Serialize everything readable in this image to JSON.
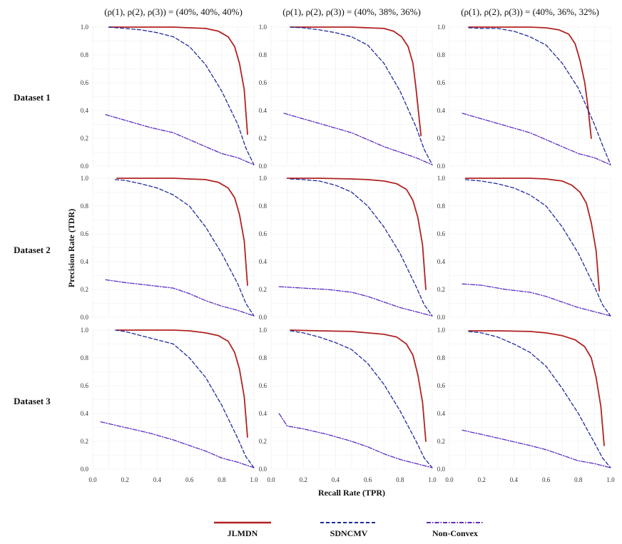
{
  "column_titles": [
    "(ρ(1), ρ(2), ρ(3)) = (40%, 40%, 40%)",
    "(ρ(1), ρ(2), ρ(3)) = (40%, 38%, 36%)",
    "(ρ(1), ρ(2), ρ(3)) = (40%, 36%, 32%)"
  ],
  "row_labels": [
    "Dataset 1",
    "Dataset 2",
    "Dataset 3"
  ],
  "colors": {
    "JLMDN": "#b22222",
    "SDNCMV": "#1f2a9c",
    "Non-Convex": "#5b2bc4"
  },
  "chart_data": {
    "type": "line",
    "xlabel": "Recall Rate (TPR)",
    "ylabel": "Precision Rate (TDR)",
    "xlim": [
      0.0,
      1.0
    ],
    "ylim": [
      0.0,
      1.0
    ],
    "xticks": [
      "0.0",
      "0.2",
      "0.4",
      "0.6",
      "0.8",
      "1.0"
    ],
    "yticks": [
      "0.0",
      "0.2",
      "0.4",
      "0.6",
      "0.8",
      "1.0"
    ],
    "legend": [
      "JLMDN",
      "SDNCMV",
      "Non-Convex"
    ],
    "legend_position": "bottom",
    "grid": true,
    "panels": [
      {
        "row": 0,
        "col": 0,
        "series": [
          {
            "name": "JLMDN",
            "x": [
              0.1,
              0.3,
              0.5,
              0.6,
              0.7,
              0.78,
              0.84,
              0.88,
              0.91,
              0.94,
              0.96
            ],
            "y": [
              1.0,
              1.0,
              1.0,
              0.995,
              0.99,
              0.97,
              0.93,
              0.86,
              0.74,
              0.55,
              0.23
            ]
          },
          {
            "name": "SDNCMV",
            "x": [
              0.1,
              0.2,
              0.3,
              0.4,
              0.5,
              0.6,
              0.7,
              0.8,
              0.9,
              0.95,
              1.0
            ],
            "y": [
              1.0,
              0.99,
              0.98,
              0.96,
              0.93,
              0.86,
              0.73,
              0.54,
              0.3,
              0.13,
              0.01
            ]
          },
          {
            "name": "Non-Convex",
            "x": [
              0.08,
              0.2,
              0.35,
              0.5,
              0.6,
              0.7,
              0.8,
              0.9,
              1.0
            ],
            "y": [
              0.37,
              0.33,
              0.28,
              0.24,
              0.19,
              0.14,
              0.09,
              0.06,
              0.01
            ]
          }
        ]
      },
      {
        "row": 0,
        "col": 1,
        "series": [
          {
            "name": "JLMDN",
            "x": [
              0.12,
              0.3,
              0.5,
              0.6,
              0.7,
              0.76,
              0.81,
              0.85,
              0.88,
              0.9,
              0.93
            ],
            "y": [
              1.0,
              1.0,
              1.0,
              0.995,
              0.99,
              0.97,
              0.93,
              0.86,
              0.74,
              0.55,
              0.22
            ]
          },
          {
            "name": "SDNCMV",
            "x": [
              0.12,
              0.2,
              0.3,
              0.4,
              0.5,
              0.6,
              0.7,
              0.8,
              0.9,
              0.95,
              1.0
            ],
            "y": [
              1.0,
              0.995,
              0.98,
              0.96,
              0.93,
              0.87,
              0.74,
              0.54,
              0.28,
              0.12,
              0.01
            ]
          },
          {
            "name": "Non-Convex",
            "x": [
              0.08,
              0.2,
              0.35,
              0.5,
              0.6,
              0.7,
              0.8,
              0.9,
              1.0
            ],
            "y": [
              0.38,
              0.34,
              0.29,
              0.24,
              0.19,
              0.14,
              0.1,
              0.06,
              0.01
            ]
          }
        ]
      },
      {
        "row": 0,
        "col": 2,
        "series": [
          {
            "name": "JLMDN",
            "x": [
              0.12,
              0.3,
              0.5,
              0.6,
              0.68,
              0.74,
              0.78,
              0.81,
              0.84,
              0.86,
              0.88
            ],
            "y": [
              1.0,
              1.0,
              1.0,
              0.995,
              0.98,
              0.95,
              0.88,
              0.76,
              0.6,
              0.42,
              0.2
            ]
          },
          {
            "name": "SDNCMV",
            "x": [
              0.12,
              0.2,
              0.3,
              0.4,
              0.5,
              0.6,
              0.7,
              0.8,
              0.9,
              0.95,
              1.0
            ],
            "y": [
              0.995,
              0.99,
              0.99,
              0.97,
              0.93,
              0.87,
              0.74,
              0.56,
              0.3,
              0.15,
              0.01
            ]
          },
          {
            "name": "Non-Convex",
            "x": [
              0.08,
              0.2,
              0.35,
              0.5,
              0.6,
              0.7,
              0.8,
              0.9,
              1.0
            ],
            "y": [
              0.38,
              0.34,
              0.29,
              0.24,
              0.19,
              0.14,
              0.09,
              0.06,
              0.01
            ]
          }
        ]
      },
      {
        "row": 1,
        "col": 0,
        "series": [
          {
            "name": "JLMDN",
            "x": [
              0.15,
              0.3,
              0.5,
              0.6,
              0.7,
              0.78,
              0.84,
              0.88,
              0.91,
              0.94,
              0.96
            ],
            "y": [
              1.0,
              1.0,
              1.0,
              0.995,
              0.99,
              0.97,
              0.93,
              0.86,
              0.74,
              0.55,
              0.23
            ]
          },
          {
            "name": "SDNCMV",
            "x": [
              0.14,
              0.2,
              0.3,
              0.4,
              0.5,
              0.6,
              0.7,
              0.8,
              0.9,
              0.95,
              1.0
            ],
            "y": [
              0.99,
              0.985,
              0.96,
              0.93,
              0.88,
              0.8,
              0.65,
              0.46,
              0.24,
              0.1,
              0.01
            ]
          },
          {
            "name": "Non-Convex",
            "x": [
              0.08,
              0.2,
              0.35,
              0.5,
              0.6,
              0.7,
              0.8,
              0.9,
              1.0
            ],
            "y": [
              0.27,
              0.25,
              0.23,
              0.21,
              0.17,
              0.12,
              0.08,
              0.05,
              0.01
            ]
          }
        ]
      },
      {
        "row": 1,
        "col": 1,
        "series": [
          {
            "name": "JLMDN",
            "x": [
              0.1,
              0.3,
              0.5,
              0.6,
              0.7,
              0.78,
              0.84,
              0.88,
              0.91,
              0.94,
              0.96
            ],
            "y": [
              1.0,
              1.0,
              0.995,
              0.99,
              0.98,
              0.96,
              0.92,
              0.84,
              0.72,
              0.52,
              0.2
            ]
          },
          {
            "name": "SDNCMV",
            "x": [
              0.12,
              0.2,
              0.3,
              0.4,
              0.5,
              0.6,
              0.7,
              0.8,
              0.9,
              0.95,
              1.0
            ],
            "y": [
              0.995,
              0.99,
              0.98,
              0.95,
              0.9,
              0.8,
              0.65,
              0.46,
              0.22,
              0.09,
              0.01
            ]
          },
          {
            "name": "Non-Convex",
            "x": [
              0.05,
              0.2,
              0.35,
              0.5,
              0.6,
              0.7,
              0.8,
              0.9,
              1.0
            ],
            "y": [
              0.22,
              0.21,
              0.2,
              0.18,
              0.15,
              0.11,
              0.07,
              0.04,
              0.01
            ]
          }
        ]
      },
      {
        "row": 1,
        "col": 2,
        "series": [
          {
            "name": "JLMDN",
            "x": [
              0.1,
              0.3,
              0.5,
              0.6,
              0.7,
              0.76,
              0.81,
              0.85,
              0.88,
              0.91,
              0.93
            ],
            "y": [
              1.0,
              1.0,
              1.0,
              0.995,
              0.98,
              0.95,
              0.9,
              0.82,
              0.68,
              0.48,
              0.19
            ]
          },
          {
            "name": "SDNCMV",
            "x": [
              0.1,
              0.2,
              0.3,
              0.4,
              0.5,
              0.6,
              0.7,
              0.8,
              0.9,
              0.95,
              1.0
            ],
            "y": [
              0.99,
              0.98,
              0.96,
              0.93,
              0.88,
              0.8,
              0.65,
              0.46,
              0.22,
              0.09,
              0.01
            ]
          },
          {
            "name": "Non-Convex",
            "x": [
              0.08,
              0.2,
              0.35,
              0.5,
              0.6,
              0.7,
              0.8,
              0.9,
              1.0
            ],
            "y": [
              0.24,
              0.23,
              0.2,
              0.18,
              0.15,
              0.11,
              0.07,
              0.04,
              0.01
            ]
          }
        ]
      },
      {
        "row": 2,
        "col": 0,
        "series": [
          {
            "name": "JLMDN",
            "x": [
              0.15,
              0.3,
              0.5,
              0.6,
              0.7,
              0.78,
              0.84,
              0.88,
              0.91,
              0.94,
              0.96
            ],
            "y": [
              1.0,
              1.0,
              1.0,
              0.995,
              0.98,
              0.96,
              0.92,
              0.84,
              0.72,
              0.52,
              0.23
            ]
          },
          {
            "name": "SDNCMV",
            "x": [
              0.14,
              0.2,
              0.3,
              0.4,
              0.5,
              0.6,
              0.7,
              0.8,
              0.9,
              0.95,
              1.0
            ],
            "y": [
              1.0,
              0.99,
              0.96,
              0.93,
              0.9,
              0.8,
              0.66,
              0.46,
              0.22,
              0.09,
              0.01
            ]
          },
          {
            "name": "Non-Convex",
            "x": [
              0.05,
              0.2,
              0.35,
              0.5,
              0.6,
              0.7,
              0.8,
              0.9,
              1.0
            ],
            "y": [
              0.34,
              0.3,
              0.26,
              0.21,
              0.17,
              0.13,
              0.08,
              0.05,
              0.01
            ]
          }
        ]
      },
      {
        "row": 2,
        "col": 1,
        "series": [
          {
            "name": "JLMDN",
            "x": [
              0.12,
              0.3,
              0.5,
              0.6,
              0.7,
              0.78,
              0.84,
              0.88,
              0.91,
              0.94,
              0.96
            ],
            "y": [
              1.0,
              0.995,
              0.99,
              0.98,
              0.97,
              0.95,
              0.9,
              0.82,
              0.68,
              0.48,
              0.2
            ]
          },
          {
            "name": "SDNCMV",
            "x": [
              0.12,
              0.2,
              0.3,
              0.4,
              0.5,
              0.6,
              0.7,
              0.8,
              0.9,
              0.95,
              1.0
            ],
            "y": [
              0.995,
              0.98,
              0.95,
              0.91,
              0.86,
              0.76,
              0.61,
              0.42,
              0.2,
              0.08,
              0.01
            ]
          },
          {
            "name": "Non-Convex",
            "x": [
              0.05,
              0.1,
              0.2,
              0.35,
              0.5,
              0.6,
              0.7,
              0.8,
              0.9,
              1.0
            ],
            "y": [
              0.4,
              0.31,
              0.29,
              0.25,
              0.2,
              0.16,
              0.11,
              0.07,
              0.04,
              0.01
            ]
          }
        ]
      },
      {
        "row": 2,
        "col": 2,
        "series": [
          {
            "name": "JLMDN",
            "x": [
              0.12,
              0.3,
              0.5,
              0.6,
              0.7,
              0.78,
              0.84,
              0.88,
              0.91,
              0.94,
              0.96
            ],
            "y": [
              0.995,
              0.995,
              0.99,
              0.98,
              0.96,
              0.93,
              0.88,
              0.8,
              0.66,
              0.45,
              0.17
            ]
          },
          {
            "name": "SDNCMV",
            "x": [
              0.12,
              0.2,
              0.3,
              0.4,
              0.5,
              0.6,
              0.7,
              0.8,
              0.9,
              0.95,
              1.0
            ],
            "y": [
              0.99,
              0.98,
              0.95,
              0.9,
              0.84,
              0.74,
              0.58,
              0.4,
              0.19,
              0.08,
              0.01
            ]
          },
          {
            "name": "Non-Convex",
            "x": [
              0.08,
              0.2,
              0.35,
              0.5,
              0.6,
              0.7,
              0.8,
              0.9,
              1.0
            ],
            "y": [
              0.28,
              0.25,
              0.21,
              0.17,
              0.14,
              0.1,
              0.06,
              0.04,
              0.01
            ]
          }
        ]
      }
    ]
  }
}
